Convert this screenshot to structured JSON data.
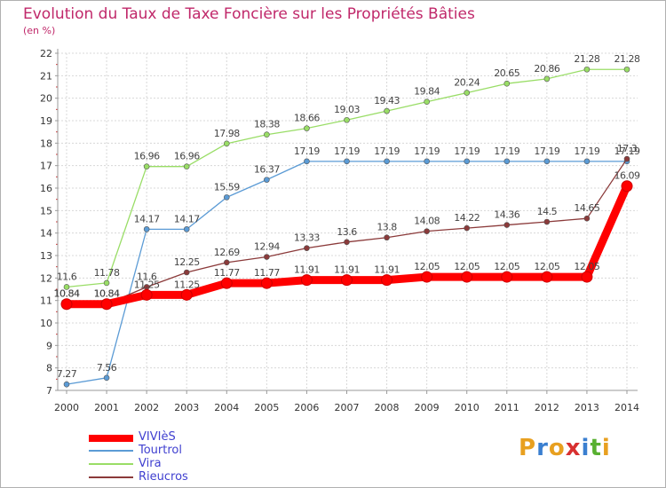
{
  "chart_data": {
    "type": "line",
    "title": "Evolution du Taux de Taxe Foncière sur les Propriétés Bâties",
    "subtitle": "(en %)",
    "x": [
      "2000",
      "2001",
      "2002",
      "2003",
      "2004",
      "2005",
      "2006",
      "2007",
      "2008",
      "2009",
      "2010",
      "2011",
      "2012",
      "2013",
      "2014"
    ],
    "ylim": [
      7,
      22
    ],
    "yticks": [
      7,
      8,
      9,
      10,
      11,
      12,
      13,
      14,
      15,
      16,
      17,
      18,
      19,
      20,
      21,
      22
    ],
    "grid": true,
    "legend_position": "bottom-left",
    "series": [
      {
        "name": "VIVIèS",
        "color": "#ff0000",
        "emphasis": true,
        "values": [
          10.84,
          10.84,
          11.25,
          11.25,
          11.77,
          11.77,
          11.91,
          11.91,
          11.91,
          12.05,
          12.05,
          12.05,
          12.05,
          12.05,
          16.09
        ],
        "labels": [
          "10.84",
          "10.84",
          "11.25",
          "11.25",
          "11.77",
          "11.77",
          "11.91",
          "11.91",
          "11.91",
          "12.05",
          "12.05",
          "12.05",
          "12.05",
          "12.05",
          "16.09"
        ]
      },
      {
        "name": "Tourtrol",
        "color": "#5b9bd5",
        "values": [
          7.27,
          7.56,
          14.17,
          14.17,
          15.59,
          16.37,
          17.19,
          17.19,
          17.19,
          17.19,
          17.19,
          17.19,
          17.19,
          17.19,
          17.19
        ],
        "labels": [
          "7.27",
          "7.56",
          "14.17",
          "14.17",
          "15.59",
          "16.37",
          "17.19",
          "17.19",
          "17.19",
          "17.19",
          "17.19",
          "17.19",
          "17.19",
          "17.19",
          "17.19"
        ]
      },
      {
        "name": "Vira",
        "color": "#99dd66",
        "values": [
          11.6,
          11.78,
          16.96,
          16.96,
          17.98,
          18.38,
          18.66,
          19.03,
          19.43,
          19.84,
          20.24,
          20.65,
          20.86,
          21.28,
          21.28
        ],
        "labels": [
          "11.6",
          "11.78",
          "16.96",
          "16.96",
          "17.98",
          "18.38",
          "18.66",
          "19.03",
          "19.43",
          "19.84",
          "20.24",
          "20.65",
          "20.86",
          "21.28",
          "21.28"
        ]
      },
      {
        "name": "Rieucros",
        "color": "#8b3a3a",
        "values": [
          10.84,
          10.84,
          11.6,
          12.25,
          12.69,
          12.94,
          13.33,
          13.6,
          13.8,
          14.08,
          14.22,
          14.36,
          14.5,
          14.65,
          17.3
        ],
        "labels": [
          "10.84",
          "10.84",
          "11.6",
          "12.25",
          "12.69",
          "12.94",
          "13.33",
          "13.6",
          "13.8",
          "14.08",
          "14.22",
          "14.36",
          "14.5",
          "14.65",
          "17.3"
        ]
      }
    ]
  },
  "legend": {
    "items": [
      "VIVIèS",
      "Tourtrol",
      "Vira",
      "Rieucros"
    ],
    "colors": [
      "#ff0000",
      "#5b9bd5",
      "#99dd66",
      "#8b3a3a"
    ]
  },
  "logo": {
    "text": "Proxiti",
    "letters": [
      "P",
      "r",
      "o",
      "x",
      "i",
      "t",
      "i"
    ],
    "colors": [
      "#e8a020",
      "#3a7fd0",
      "#e8a020",
      "#d83030",
      "#3a7fd0",
      "#58b030",
      "#e8a020"
    ]
  }
}
